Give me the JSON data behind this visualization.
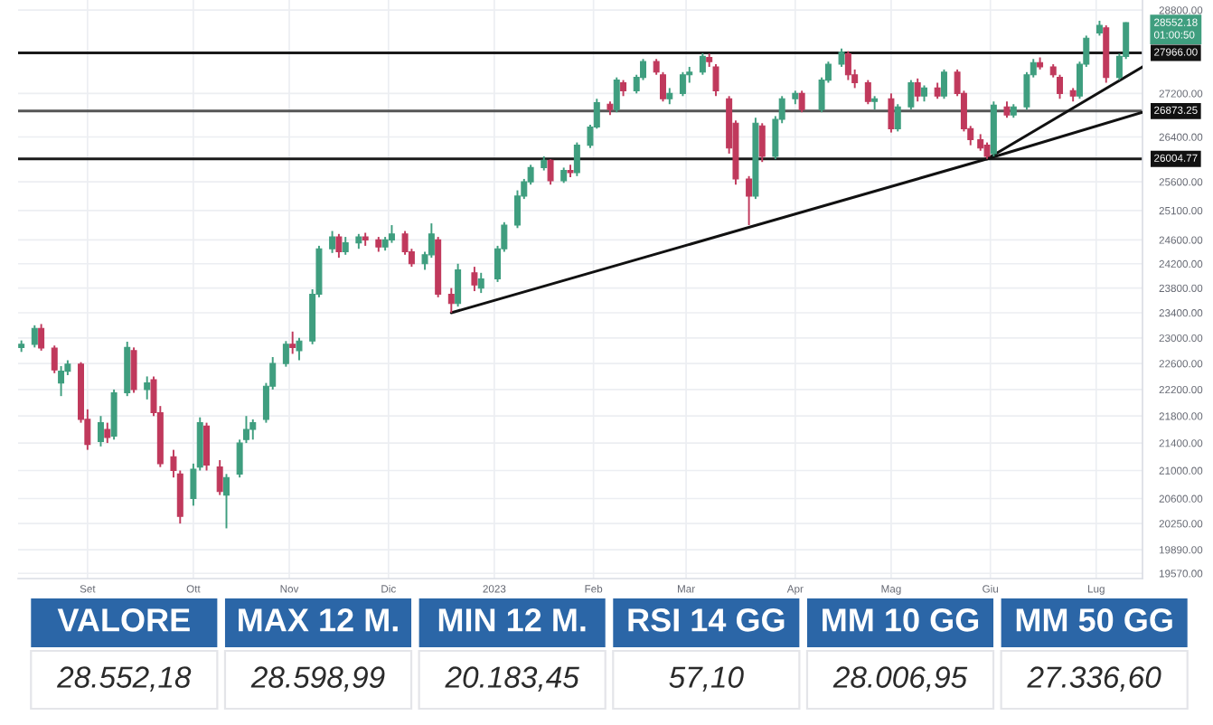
{
  "chart_data": [
    {
      "type": "candlestick",
      "x": [
        "2022-08-12",
        "2022-08-16",
        "2022-08-18",
        "2022-08-22",
        "2022-08-24",
        "2022-08-26",
        "2022-08-30",
        "2022-09-01",
        "2022-09-05",
        "2022-09-07",
        "2022-09-09",
        "2022-09-13",
        "2022-09-15",
        "2022-09-19",
        "2022-09-21",
        "2022-09-23",
        "2022-09-27",
        "2022-09-29",
        "2022-10-03",
        "2022-10-05",
        "2022-10-07",
        "2022-10-11",
        "2022-10-13",
        "2022-10-17",
        "2022-10-19",
        "2022-10-21",
        "2022-10-25",
        "2022-10-27",
        "2022-10-31",
        "2022-11-02",
        "2022-11-04",
        "2022-11-08",
        "2022-11-10",
        "2022-11-14",
        "2022-11-16",
        "2022-11-18",
        "2022-11-22",
        "2022-11-24",
        "2022-11-28",
        "2022-11-30",
        "2022-12-02",
        "2022-12-06",
        "2022-12-08",
        "2022-12-12",
        "2022-12-14",
        "2022-12-16",
        "2022-12-20",
        "2022-12-22",
        "2022-12-27",
        "2022-12-29",
        "2023-01-03",
        "2023-01-05",
        "2023-01-09",
        "2023-01-11",
        "2023-01-13",
        "2023-01-17",
        "2023-01-19",
        "2023-01-23",
        "2023-01-25",
        "2023-01-27",
        "2023-01-31",
        "2023-02-02",
        "2023-02-06",
        "2023-02-08",
        "2023-02-10",
        "2023-02-14",
        "2023-02-16",
        "2023-02-20",
        "2023-02-22",
        "2023-02-24",
        "2023-02-28",
        "2023-03-02",
        "2023-03-06",
        "2023-03-08",
        "2023-03-10",
        "2023-03-14",
        "2023-03-16",
        "2023-03-20",
        "2023-03-22",
        "2023-03-24",
        "2023-03-28",
        "2023-03-30",
        "2023-04-03",
        "2023-04-05",
        "2023-04-11",
        "2023-04-13",
        "2023-04-17",
        "2023-04-19",
        "2023-04-21",
        "2023-04-25",
        "2023-04-27",
        "2023-05-02",
        "2023-05-04",
        "2023-05-08",
        "2023-05-10",
        "2023-05-12",
        "2023-05-16",
        "2023-05-18",
        "2023-05-22",
        "2023-05-24",
        "2023-05-26",
        "2023-05-29",
        "2023-05-31",
        "2023-06-02",
        "2023-06-06",
        "2023-06-08",
        "2023-06-12",
        "2023-06-14",
        "2023-06-16",
        "2023-06-20",
        "2023-06-22",
        "2023-06-26",
        "2023-06-28",
        "2023-06-30",
        "2023-07-04",
        "2023-07-06",
        "2023-07-10",
        "2023-07-12"
      ],
      "ohlc": [
        [
          22850,
          22960,
          22780,
          22900
        ],
        [
          22900,
          23200,
          22850,
          23150
        ],
        [
          23150,
          23220,
          22800,
          22840
        ],
        [
          22840,
          22880,
          22450,
          22500
        ],
        [
          22300,
          22560,
          22100,
          22480
        ],
        [
          22480,
          22650,
          22420,
          22590
        ],
        [
          22590,
          22620,
          21700,
          21750
        ],
        [
          21750,
          21900,
          21300,
          21380
        ],
        [
          21420,
          21800,
          21350,
          21700
        ],
        [
          21600,
          21700,
          21400,
          21480
        ],
        [
          21500,
          22200,
          21450,
          22150
        ],
        [
          22150,
          22940,
          22100,
          22850
        ],
        [
          22800,
          22850,
          22150,
          22200
        ],
        [
          22200,
          22400,
          22050,
          22300
        ],
        [
          22350,
          22400,
          21800,
          21850
        ],
        [
          21850,
          21950,
          21050,
          21100
        ],
        [
          21200,
          21300,
          20900,
          21000
        ],
        [
          20950,
          21000,
          20250,
          20350
        ],
        [
          20600,
          21100,
          20500,
          21020
        ],
        [
          21050,
          21780,
          21000,
          21700
        ],
        [
          21650,
          21700,
          21000,
          21080
        ],
        [
          21050,
          21150,
          20650,
          20700
        ],
        [
          20650,
          20950,
          20183.45,
          20900
        ],
        [
          20950,
          21450,
          20900,
          21400
        ],
        [
          21450,
          21800,
          21400,
          21600
        ],
        [
          21600,
          21750,
          21450,
          21700
        ],
        [
          21750,
          22300,
          21700,
          22250
        ],
        [
          22250,
          22700,
          22200,
          22600
        ],
        [
          22600,
          22950,
          22550,
          22900
        ],
        [
          22900,
          23100,
          22750,
          22850
        ],
        [
          22800,
          23000,
          22650,
          22950
        ],
        [
          22950,
          23780,
          22900,
          23700
        ],
        [
          23700,
          24500,
          23650,
          24450
        ],
        [
          24450,
          24750,
          24380,
          24650
        ],
        [
          24650,
          24700,
          24300,
          24400
        ],
        [
          24400,
          24650,
          24350,
          24550
        ],
        [
          24550,
          24700,
          24450,
          24650
        ],
        [
          24650,
          24720,
          24500,
          24600
        ],
        [
          24600,
          24650,
          24400,
          24480
        ],
        [
          24480,
          24650,
          24420,
          24600
        ],
        [
          24600,
          24850,
          24550,
          24700
        ],
        [
          24700,
          24750,
          24350,
          24400
        ],
        [
          24400,
          24450,
          24150,
          24200
        ],
        [
          24200,
          24400,
          24100,
          24350
        ],
        [
          24350,
          24880,
          24300,
          24700
        ],
        [
          24600,
          24650,
          23650,
          23700
        ],
        [
          23700,
          23800,
          23400,
          23550
        ],
        [
          23550,
          24200,
          23500,
          24100
        ],
        [
          24050,
          24150,
          23750,
          23850
        ],
        [
          23800,
          24050,
          23720,
          23950
        ],
        [
          23950,
          24500,
          23900,
          24450
        ],
        [
          24450,
          24900,
          24400,
          24850
        ],
        [
          24850,
          25450,
          24800,
          25350
        ],
        [
          25350,
          25650,
          25300,
          25600
        ],
        [
          25600,
          25900,
          25550,
          25850
        ],
        [
          25850,
          26050,
          25800,
          25980
        ],
        [
          25980,
          26000,
          25550,
          25620
        ],
        [
          25620,
          25850,
          25580,
          25800
        ],
        [
          25800,
          25900,
          25680,
          25760
        ],
        [
          25760,
          26300,
          25700,
          26250
        ],
        [
          26250,
          26620,
          26200,
          26580
        ],
        [
          26580,
          27100,
          26550,
          27030
        ],
        [
          27000,
          27050,
          26800,
          26900
        ],
        [
          26900,
          27500,
          26850,
          27450
        ],
        [
          27400,
          27450,
          27150,
          27250
        ],
        [
          27250,
          27550,
          27200,
          27500
        ],
        [
          27500,
          27850,
          27450,
          27800
        ],
        [
          27800,
          27850,
          27550,
          27600
        ],
        [
          27550,
          27600,
          27050,
          27100
        ],
        [
          27100,
          27300,
          27000,
          27200
        ],
        [
          27200,
          27600,
          27150,
          27550
        ],
        [
          27550,
          27700,
          27400,
          27600
        ],
        [
          27600,
          27960,
          27550,
          27900
        ],
        [
          27880,
          27950,
          27700,
          27800
        ],
        [
          27700,
          27750,
          27150,
          27250
        ],
        [
          27100,
          27150,
          26100,
          26200
        ],
        [
          26650,
          26700,
          25550,
          25650
        ],
        [
          25650,
          25700,
          24850,
          25350
        ],
        [
          25350,
          26750,
          25300,
          26650
        ],
        [
          26600,
          26650,
          25950,
          26050
        ],
        [
          26050,
          26780,
          26000,
          26720
        ],
        [
          26720,
          27150,
          26650,
          27100
        ],
        [
          27100,
          27250,
          27000,
          27200
        ],
        [
          27200,
          27250,
          26850,
          26900
        ],
        [
          26900,
          27500,
          26850,
          27450
        ],
        [
          27450,
          27800,
          27400,
          27750
        ],
        [
          27750,
          28050,
          27700,
          27980
        ],
        [
          27950,
          28000,
          27450,
          27550
        ],
        [
          27550,
          27650,
          27300,
          27400
        ],
        [
          27400,
          27450,
          27000,
          27050
        ],
        [
          27050,
          27150,
          26900,
          27100
        ],
        [
          27100,
          27200,
          26480,
          26550
        ],
        [
          26550,
          27000,
          26500,
          26950
        ],
        [
          26950,
          27450,
          26900,
          27400
        ],
        [
          27400,
          27480,
          27050,
          27150
        ],
        [
          27150,
          27350,
          27050,
          27300
        ],
        [
          27300,
          27400,
          27100,
          27150
        ],
        [
          27150,
          27650,
          27100,
          27600
        ],
        [
          27600,
          27650,
          27150,
          27200
        ],
        [
          27200,
          27250,
          26500,
          26550
        ],
        [
          26550,
          26600,
          26250,
          26350
        ],
        [
          26350,
          26450,
          26150,
          26200
        ],
        [
          26250,
          26300,
          26004.77,
          26050
        ],
        [
          26100,
          27050,
          26050,
          26980
        ],
        [
          26950,
          27050,
          26750,
          26800
        ],
        [
          26800,
          27000,
          26750,
          26950
        ],
        [
          26950,
          27600,
          26900,
          27550
        ],
        [
          27550,
          27850,
          27500,
          27780
        ],
        [
          27780,
          27880,
          27650,
          27700
        ],
        [
          27700,
          27750,
          27500,
          27550
        ],
        [
          27500,
          27550,
          27100,
          27200
        ],
        [
          27250,
          27300,
          27050,
          27150
        ],
        [
          27150,
          27800,
          27100,
          27750
        ],
        [
          27750,
          28300,
          27700,
          28250
        ],
        [
          28350,
          28590,
          28300,
          28500
        ],
        [
          28450,
          28500,
          27400,
          27500
        ],
        [
          27500,
          27950,
          27450,
          27900
        ],
        [
          27900,
          28560,
          27850,
          28552.18
        ]
      ],
      "colors": [
        "#3f9e7f",
        "#3f9e7f",
        "#c0395c",
        "#c0395c",
        "#3f9e7f",
        "#3f9e7f",
        "#c0395c",
        "#c0395c",
        "#3f9e7f",
        "#c0395c",
        "#3f9e7f",
        "#3f9e7f",
        "#c0395c",
        "#3f9e7f",
        "#c0395c",
        "#c0395c",
        "#c0395c",
        "#c0395c",
        "#3f9e7f",
        "#3f9e7f",
        "#c0395c",
        "#c0395c",
        "#3f9e7f",
        "#3f9e7f",
        "#3f9e7f",
        "#3f9e7f",
        "#3f9e7f",
        "#3f9e7f",
        "#3f9e7f",
        "#c0395c",
        "#3f9e7f",
        "#3f9e7f",
        "#3f9e7f",
        "#3f9e7f",
        "#c0395c",
        "#3f9e7f",
        "#3f9e7f",
        "#c0395c",
        "#c0395c",
        "#3f9e7f",
        "#3f9e7f",
        "#c0395c",
        "#c0395c",
        "#3f9e7f",
        "#3f9e7f",
        "#c0395c",
        "#c0395c",
        "#3f9e7f",
        "#c0395c",
        "#3f9e7f",
        "#3f9e7f",
        "#3f9e7f",
        "#3f9e7f",
        "#3f9e7f",
        "#3f9e7f",
        "#3f9e7f",
        "#c0395c",
        "#3f9e7f",
        "#c0395c",
        "#3f9e7f",
        "#3f9e7f",
        "#3f9e7f",
        "#c0395c",
        "#3f9e7f",
        "#c0395c",
        "#3f9e7f",
        "#3f9e7f",
        "#c0395c",
        "#c0395c",
        "#3f9e7f",
        "#3f9e7f",
        "#3f9e7f",
        "#3f9e7f",
        "#c0395c",
        "#c0395c",
        "#c0395c",
        "#c0395c",
        "#c0395c",
        "#3f9e7f",
        "#c0395c",
        "#3f9e7f",
        "#3f9e7f",
        "#3f9e7f",
        "#c0395c",
        "#3f9e7f",
        "#3f9e7f",
        "#3f9e7f",
        "#c0395c",
        "#c0395c",
        "#c0395c",
        "#3f9e7f",
        "#c0395c",
        "#3f9e7f",
        "#3f9e7f",
        "#c0395c",
        "#3f9e7f",
        "#c0395c",
        "#3f9e7f",
        "#c0395c",
        "#c0395c",
        "#c0395c",
        "#c0395c",
        "#c0395c",
        "#3f9e7f",
        "#c0395c",
        "#3f9e7f",
        "#3f9e7f",
        "#3f9e7f",
        "#c0395c",
        "#c0395c",
        "#c0395c",
        "#c0395c",
        "#3f9e7f",
        "#3f9e7f",
        "#3f9e7f",
        "#c0395c",
        "#3f9e7f",
        "#3f9e7f"
      ],
      "series": [
        {
          "type": "line",
          "color": "#111111",
          "x": [
            "2022-12-20",
            "2023-05-31",
            "2023-07-17"
          ],
          "values": [
            23400,
            26004.77,
            26850
          ]
        },
        {
          "type": "line",
          "color": "#111111",
          "x": [
            "2023-05-31",
            "2023-07-17"
          ],
          "values": [
            26004.77,
            27700
          ]
        }
      ],
      "xlim": [
        "2022-08-11",
        "2023-07-17"
      ],
      "xticks": [
        {
          "value": "2022-09-01",
          "label": "Set"
        },
        {
          "value": "2022-10-03",
          "label": "Ott"
        },
        {
          "value": "2022-11-01",
          "label": "Nov"
        },
        {
          "value": "2022-12-01",
          "label": "Dic"
        },
        {
          "value": "2023-01-02",
          "label": "2023"
        },
        {
          "value": "2023-02-01",
          "label": "Feb"
        },
        {
          "value": "2023-03-01",
          "label": "Mar"
        },
        {
          "value": "2023-04-03",
          "label": "Apr"
        },
        {
          "value": "2023-05-02",
          "label": "Mag"
        },
        {
          "value": "2023-06-01",
          "label": "Giu"
        },
        {
          "value": "2023-07-03",
          "label": "Lug"
        }
      ],
      "log": true,
      "ylim": [
        19500,
        29000
      ],
      "yticks": [
        {
          "value": 19570,
          "label": "19570.00"
        },
        {
          "value": 19890,
          "label": "19890.00"
        },
        {
          "value": 20250,
          "label": "20250.00"
        },
        {
          "value": 20600,
          "label": "20600.00"
        },
        {
          "value": 21000,
          "label": "21000.00"
        },
        {
          "value": 21400,
          "label": "21400.00"
        },
        {
          "value": 21800,
          "label": "21800.00"
        },
        {
          "value": 22200,
          "label": "22200.00"
        },
        {
          "value": 22600,
          "label": "22600.00"
        },
        {
          "value": 23000,
          "label": "23000.00"
        },
        {
          "value": 23400,
          "label": "23400.00"
        },
        {
          "value": 23800,
          "label": "23800.00"
        },
        {
          "value": 24200,
          "label": "24200.00"
        },
        {
          "value": 24600,
          "label": "24600.00"
        },
        {
          "value": 25100,
          "label": "25100.00"
        },
        {
          "value": 25600,
          "label": "25600.00"
        },
        {
          "value": 26400,
          "label": "26400.00"
        },
        {
          "value": 27200,
          "label": "27200.00"
        },
        {
          "value": 28800,
          "label": "28800.00"
        }
      ],
      "grid": true,
      "ref_lines": [
        {
          "axis": "y",
          "value": 27966,
          "label": "27966.00",
          "color": "#1a1a1a"
        },
        {
          "axis": "y",
          "value": 26873.25,
          "label": "26873.25",
          "color": "#555555"
        },
        {
          "axis": "y",
          "value": 26004.77,
          "label": "26004.77",
          "color": "#1a1a1a"
        }
      ],
      "annotations": [
        "28552.18\n01:00:50"
      ]
    },
    {
      "type": "other",
      "categories": [
        "VALORE",
        "MAX 12 M.",
        "MIN 12 M.",
        "RSI 14 GG",
        "MM 10 GG",
        "MM 50 GG"
      ],
      "value_labels": [
        "28.552,18",
        "28.598,99",
        "20.183,45",
        "57,10",
        "28.006,95",
        "27.336,60"
      ]
    }
  ]
}
